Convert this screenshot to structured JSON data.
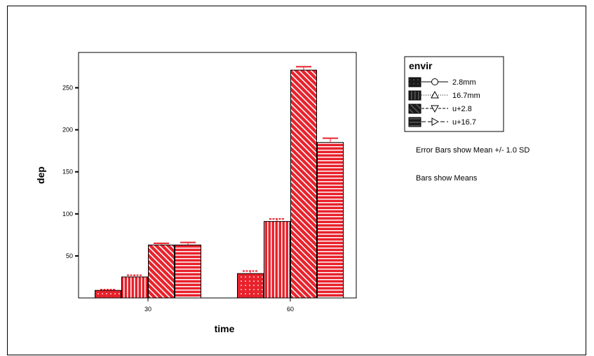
{
  "chart_data": {
    "type": "bar",
    "xlabel": "time",
    "ylabel": "dep",
    "categories": [
      "30",
      "60"
    ],
    "yticks": [
      50,
      100,
      150,
      200,
      250
    ],
    "ylim": [
      0,
      292
    ],
    "legend": {
      "title": "envir",
      "placement": "right"
    },
    "series": [
      {
        "name": "2.8mm",
        "values": [
          9,
          29
        ],
        "sd": [
          1,
          3
        ],
        "pattern": "dots",
        "marker": "circle"
      },
      {
        "name": "16.7mm",
        "values": [
          25,
          91
        ],
        "sd": [
          2,
          3
        ],
        "pattern": "vertical",
        "marker": "triangle-up"
      },
      {
        "name": "u+2.8",
        "values": [
          63,
          271
        ],
        "sd": [
          2,
          4
        ],
        "pattern": "diagonal",
        "marker": "triangle-down"
      },
      {
        "name": "u+16.7",
        "values": [
          63,
          185
        ],
        "sd": [
          3,
          5
        ],
        "pattern": "horizontal",
        "marker": "triangle-right"
      }
    ],
    "colors": {
      "bar": "#e8222c",
      "error": "#e8222c",
      "axis": "#000000"
    }
  },
  "notes": {
    "error_bars": "Error Bars show Mean +/- 1.0 SD",
    "bars": "Bars show Means"
  }
}
